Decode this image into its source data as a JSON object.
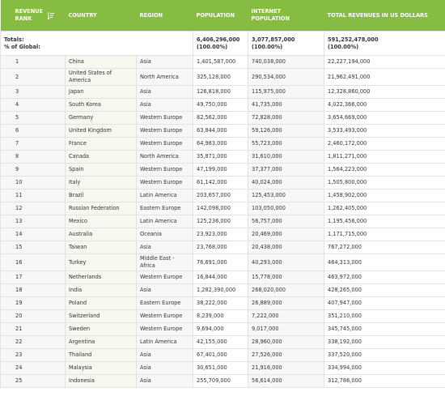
{
  "table": {
    "header": [
      "REVENUE RANK",
      "COUNTRY",
      "REGION",
      "POPULATION",
      "INTERNET POPULATION",
      "TOTAL REVENUES IN US DOLLARS"
    ],
    "totals": {
      "label": "Totals:",
      "sublabel": "% of Global:",
      "values": [
        [
          "6,406,296,000",
          "(100.00%)"
        ],
        [
          "3,077,857,000",
          "(100.00%)"
        ],
        [
          "591,252,478,000",
          "(100.00%)"
        ]
      ]
    },
    "rows": [
      [
        "1",
        "China",
        "Asia",
        "1,401,587,000",
        "740,038,000",
        "22,227,194,000"
      ],
      [
        "2",
        "United States of America",
        "North America",
        "325,128,000",
        "290,534,000",
        "21,962,491,000"
      ],
      [
        "3",
        "Japan",
        "Asia",
        "126,818,000",
        "115,975,000",
        "12,328,860,000"
      ],
      [
        "4",
        "South Korea",
        "Asia",
        "49,750,000",
        "41,735,000",
        "4,022,366,000"
      ],
      [
        "5",
        "Germany",
        "Western Europe",
        "82,562,000",
        "72,828,000",
        "3,654,669,000"
      ],
      [
        "6",
        "United Kingdom",
        "Western Europe",
        "63,844,000",
        "59,126,000",
        "3,533,493,000"
      ],
      [
        "7",
        "France",
        "Western Europe",
        "64,983,000",
        "55,723,000",
        "2,460,172,000"
      ],
      [
        "8",
        "Canada",
        "North America",
        "35,871,000",
        "31,610,000",
        "1,811,271,000"
      ],
      [
        "9",
        "Spain",
        "Western Europe",
        "47,199,000",
        "37,377,000",
        "1,564,223,000"
      ],
      [
        "10",
        "Italy",
        "Western Europe",
        "61,142,000",
        "40,024,000",
        "1,505,800,000"
      ],
      [
        "11",
        "Brazil",
        "Latin America",
        "203,657,000",
        "125,453,000",
        "1,458,902,000"
      ],
      [
        "12",
        "Russian Federation",
        "Eastern Europe",
        "142,098,000",
        "103,050,000",
        "1,262,405,000"
      ],
      [
        "13",
        "Mexico",
        "Latin America",
        "125,236,000",
        "56,757,000",
        "1,195,456,000"
      ],
      [
        "14",
        "Australia",
        "Oceania",
        "23,923,000",
        "20,469,000",
        "1,171,715,000"
      ],
      [
        "15",
        "Taiwan",
        "Asia",
        "23,768,000",
        "20,438,000",
        "767,272,000"
      ],
      [
        "16",
        "Turkey",
        "Middle East - Africa",
        "76,691,000",
        "40,293,000",
        "464,313,000"
      ],
      [
        "17",
        "Netherlands",
        "Western Europe",
        "16,844,000",
        "15,778,000",
        "463,972,000"
      ],
      [
        "18",
        "India",
        "Asia",
        "1,282,390,000",
        "268,020,000",
        "428,265,000"
      ],
      [
        "19",
        "Poland",
        "Eastern Europe",
        "38,222,000",
        "26,889,000",
        "407,947,000"
      ],
      [
        "20",
        "Switzerland",
        "Western Europe",
        "8,239,000",
        "7,222,000",
        "351,210,000"
      ],
      [
        "21",
        "Sweden",
        "Western Europe",
        "9,694,000",
        "9,017,000",
        "345,745,000"
      ],
      [
        "22",
        "Argentina",
        "Latin America",
        "42,155,000",
        "28,960,000",
        "338,192,000"
      ],
      [
        "23",
        "Thailand",
        "Asia",
        "67,401,000",
        "27,526,000",
        "337,520,000"
      ],
      [
        "24",
        "Malaysia",
        "Asia",
        "30,651,000",
        "21,916,000",
        "334,994,000"
      ],
      [
        "25",
        "Indonesia",
        "Asia",
        "255,709,000",
        "56,614,000",
        "312,786,000"
      ]
    ]
  }
}
